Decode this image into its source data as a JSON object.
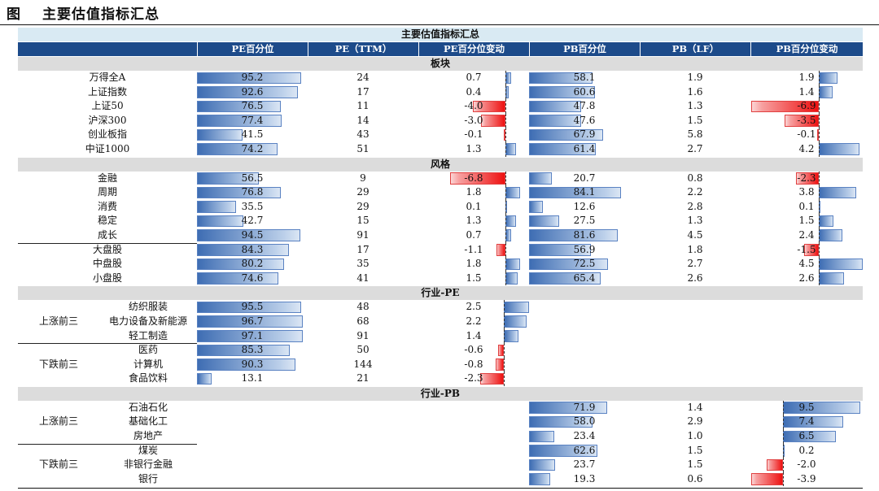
{
  "figure": {
    "label": "图",
    "title": "主要估值指标汇总"
  },
  "table_title": "主要估值指标汇总",
  "headers": [
    "",
    "PE百分位",
    "PE（TTM）",
    "PE百分位变动",
    "PB百分位",
    "PB（LF）",
    "PB百分位变动"
  ],
  "sections": [
    {
      "name": "板块",
      "rows": [
        {
          "group": "",
          "item": "万得全A",
          "pe_pct": 95.2,
          "pe": "24",
          "pe_chg": 0.7,
          "pb_pct": 58.1,
          "pb": "1.9",
          "pb_chg": 1.9
        },
        {
          "group": "",
          "item": "上证指数",
          "pe_pct": 92.6,
          "pe": "17",
          "pe_chg": 0.4,
          "pb_pct": 60.6,
          "pb": "1.6",
          "pb_chg": 1.4
        },
        {
          "group": "",
          "item": "上证50",
          "pe_pct": 76.5,
          "pe": "11",
          "pe_chg": -4.0,
          "pb_pct": 47.8,
          "pb": "1.3",
          "pb_chg": -6.9
        },
        {
          "group": "",
          "item": "沪深300",
          "pe_pct": 77.4,
          "pe": "14",
          "pe_chg": -3.0,
          "pb_pct": 47.6,
          "pb": "1.5",
          "pb_chg": -3.5
        },
        {
          "group": "",
          "item": "创业板指",
          "pe_pct": 41.5,
          "pe": "43",
          "pe_chg": -0.1,
          "pb_pct": 67.9,
          "pb": "5.8",
          "pb_chg": -0.1
        },
        {
          "group": "",
          "item": "中证1000",
          "pe_pct": 74.2,
          "pe": "51",
          "pe_chg": 1.3,
          "pb_pct": 61.4,
          "pb": "2.7",
          "pb_chg": 4.2
        }
      ]
    },
    {
      "name": "风格",
      "rows": [
        {
          "group": "",
          "item": "金融",
          "pe_pct": 56.5,
          "pe": "9",
          "pe_chg": -6.8,
          "pb_pct": 20.7,
          "pb": "0.8",
          "pb_chg": -2.3
        },
        {
          "group": "",
          "item": "周期",
          "pe_pct": 76.8,
          "pe": "29",
          "pe_chg": 1.8,
          "pb_pct": 84.1,
          "pb": "2.2",
          "pb_chg": 3.8
        },
        {
          "group": "",
          "item": "消费",
          "pe_pct": 35.5,
          "pe": "29",
          "pe_chg": 0.1,
          "pb_pct": 12.6,
          "pb": "2.8",
          "pb_chg": 0.1
        },
        {
          "group": "",
          "item": "稳定",
          "pe_pct": 42.7,
          "pe": "15",
          "pe_chg": 1.3,
          "pb_pct": 27.5,
          "pb": "1.3",
          "pb_chg": 1.5
        },
        {
          "group": "",
          "item": "成长",
          "pe_pct": 94.5,
          "pe": "91",
          "pe_chg": 0.7,
          "pb_pct": 81.6,
          "pb": "4.5",
          "pb_chg": 2.4
        },
        {
          "group": "",
          "item": "大盘股",
          "pe_pct": 84.3,
          "pe": "17",
          "pe_chg": -1.1,
          "pb_pct": 56.9,
          "pb": "1.8",
          "pb_chg": -1.5,
          "line_above": true
        },
        {
          "group": "",
          "item": "中盘股",
          "pe_pct": 80.2,
          "pe": "35",
          "pe_chg": 1.8,
          "pb_pct": 72.5,
          "pb": "2.7",
          "pb_chg": 4.5
        },
        {
          "group": "",
          "item": "小盘股",
          "pe_pct": 74.6,
          "pe": "41",
          "pe_chg": 1.5,
          "pb_pct": 65.4,
          "pb": "2.6",
          "pb_chg": 2.6
        }
      ]
    },
    {
      "name": "行业-PE",
      "rows": [
        {
          "group": "",
          "item": "纺织服装",
          "pe_pct": 95.5,
          "pe": "48",
          "pe_chg": 2.5
        },
        {
          "group": "上涨前三",
          "item": "电力设备及新能源",
          "pe_pct": 96.7,
          "pe": "68",
          "pe_chg": 2.2
        },
        {
          "group": "",
          "item": "轻工制造",
          "pe_pct": 97.1,
          "pe": "91",
          "pe_chg": 1.4
        },
        {
          "group": "",
          "item": "医药",
          "pe_pct": 85.3,
          "pe": "50",
          "pe_chg": -0.6,
          "line_above": true
        },
        {
          "group": "下跌前三",
          "item": "计算机",
          "pe_pct": 90.3,
          "pe": "144",
          "pe_chg": -0.8
        },
        {
          "group": "",
          "item": "食品饮料",
          "pe_pct": 13.1,
          "pe": "21",
          "pe_chg": -2.3
        }
      ]
    },
    {
      "name": "行业-PB",
      "rows": [
        {
          "group": "",
          "item": "石油石化",
          "pb_pct": 71.9,
          "pb": "1.4",
          "pb_chg": 9.5
        },
        {
          "group": "上涨前三",
          "item": "基础化工",
          "pb_pct": 58.0,
          "pb": "2.9",
          "pb_chg": 7.4
        },
        {
          "group": "",
          "item": "房地产",
          "pb_pct": 23.4,
          "pb": "1.0",
          "pb_chg": 6.5
        },
        {
          "group": "",
          "item": "煤炭",
          "pb_pct": 62.6,
          "pb": "1.5",
          "pb_chg": 0.2,
          "line_above": true
        },
        {
          "group": "下跌前三",
          "item": "非银行金融",
          "pb_pct": 23.7,
          "pb": "1.5",
          "pb_chg": -2.0
        },
        {
          "group": "",
          "item": "银行",
          "pb_pct": 19.3,
          "pb": "0.6",
          "pb_chg": -3.9
        }
      ]
    }
  ]
}
